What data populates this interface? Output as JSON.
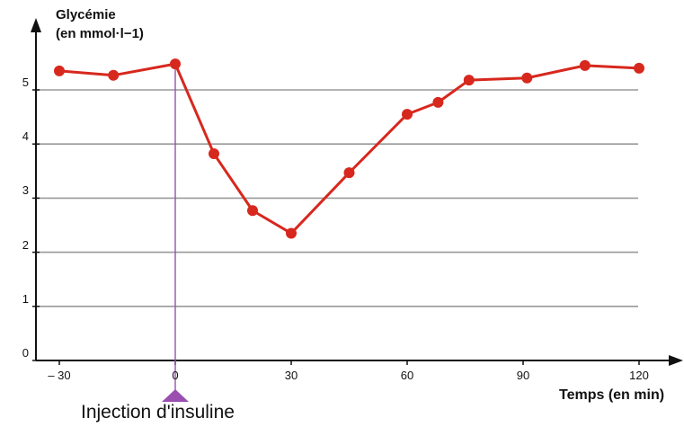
{
  "chart_data": {
    "type": "line",
    "ylabel_line1": "Glycémie",
    "ylabel_line2": "(en mmol·l−1)",
    "xlabel": "Temps (en min)",
    "annotation": "Injection d'insuline",
    "annotation_x": 0,
    "x_ticks": [
      "– 30",
      "0",
      "30",
      "60",
      "90",
      "120"
    ],
    "x_tick_values": [
      -30,
      0,
      30,
      60,
      90,
      120
    ],
    "y_ticks": [
      "0",
      "1",
      "2",
      "3",
      "4",
      "5"
    ],
    "y_tick_values": [
      0,
      1,
      2,
      3,
      4,
      5
    ],
    "xlim": [
      -35,
      130
    ],
    "ylim": [
      0,
      6
    ],
    "grid": "horizontal",
    "series": [
      {
        "color": "#d7281e",
        "x": [
          -30,
          -16,
          0,
          10,
          20,
          30,
          45,
          60,
          68,
          76,
          91,
          106,
          120
        ],
        "y": [
          5.35,
          5.27,
          5.48,
          3.82,
          2.77,
          2.35,
          3.47,
          4.55,
          4.77,
          5.18,
          5.22,
          5.45,
          5.4
        ]
      }
    ],
    "injection_line_color": "#9a4fb0"
  }
}
